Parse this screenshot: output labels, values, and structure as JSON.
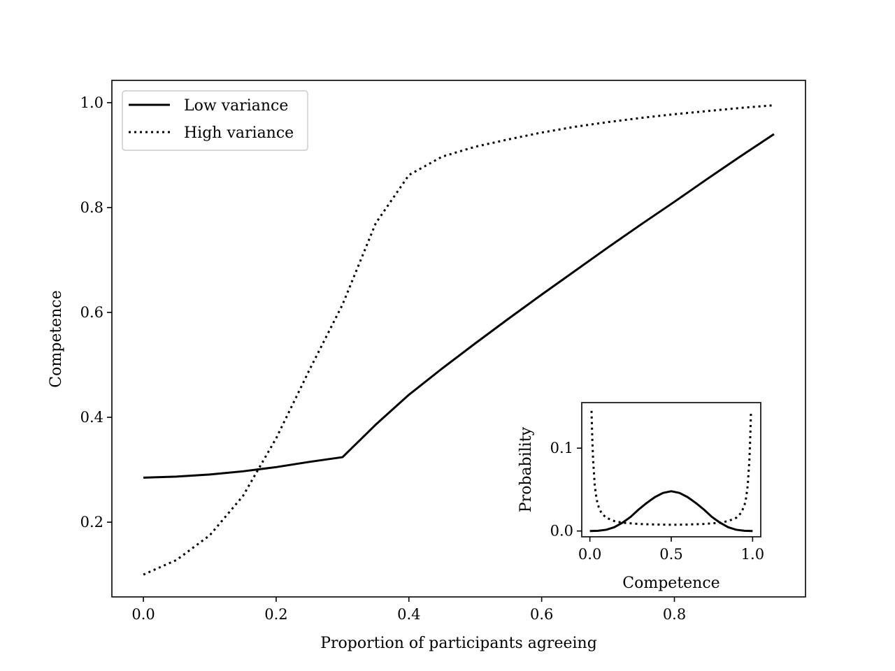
{
  "chart_data": [
    {
      "type": "line",
      "title": "",
      "xlabel": "Proportion of participants agreeing",
      "ylabel": "Competence",
      "xlim": [
        -0.0475,
        0.9975
      ],
      "ylim": [
        0.0575,
        1.0425
      ],
      "x_ticks": [
        "0.0",
        "0.2",
        "0.4",
        "0.6",
        "0.8"
      ],
      "x_tick_values": [
        0.0,
        0.2,
        0.4,
        0.6,
        0.8
      ],
      "y_ticks": [
        "0.2",
        "0.4",
        "0.6",
        "0.8",
        "1.0"
      ],
      "y_tick_values": [
        0.2,
        0.4,
        0.6,
        0.8,
        1.0
      ],
      "legend_position": "top-left",
      "grid": false,
      "series": [
        {
          "name": "Low variance",
          "style": "solid",
          "x": [
            0.0,
            0.05,
            0.1,
            0.15,
            0.2,
            0.25,
            0.3,
            0.35,
            0.4,
            0.45,
            0.5,
            0.55,
            0.6,
            0.65,
            0.7,
            0.75,
            0.8,
            0.85,
            0.9,
            0.95
          ],
          "y": [
            0.285,
            0.287,
            0.291,
            0.297,
            0.305,
            0.315,
            0.324,
            0.386,
            0.443,
            0.493,
            0.541,
            0.588,
            0.634,
            0.679,
            0.724,
            0.768,
            0.811,
            0.855,
            0.898,
            0.94
          ]
        },
        {
          "name": "High variance",
          "style": "dotted",
          "x": [
            0.0,
            0.05,
            0.1,
            0.15,
            0.2,
            0.25,
            0.3,
            0.35,
            0.4,
            0.45,
            0.5,
            0.55,
            0.6,
            0.65,
            0.7,
            0.75,
            0.8,
            0.85,
            0.9,
            0.95
          ],
          "y": [
            0.1,
            0.128,
            0.175,
            0.25,
            0.36,
            0.49,
            0.615,
            0.77,
            0.862,
            0.897,
            0.916,
            0.93,
            0.943,
            0.954,
            0.963,
            0.971,
            0.978,
            0.984,
            0.99,
            0.995
          ]
        }
      ]
    },
    {
      "type": "line",
      "title": "",
      "xlabel": "Competence",
      "ylabel": "Probability",
      "xlim": [
        -0.05,
        1.05
      ],
      "ylim": [
        -0.007,
        0.155
      ],
      "x_ticks": [
        "0.0",
        "0.5",
        "1.0"
      ],
      "x_tick_values": [
        0.0,
        0.5,
        1.0
      ],
      "y_ticks": [
        "0.0",
        "0.1"
      ],
      "y_tick_values": [
        0.0,
        0.1
      ],
      "grid": false,
      "series": [
        {
          "style": "solid",
          "x": [
            0.0,
            0.05,
            0.1,
            0.15,
            0.2,
            0.25,
            0.3,
            0.35,
            0.4,
            0.45,
            0.5,
            0.55,
            0.6,
            0.65,
            0.7,
            0.75,
            0.8,
            0.85,
            0.9,
            0.95,
            1.0
          ],
          "y": [
            0.0,
            0.0003,
            0.0015,
            0.0045,
            0.01,
            0.017,
            0.026,
            0.034,
            0.041,
            0.046,
            0.048,
            0.046,
            0.041,
            0.034,
            0.026,
            0.017,
            0.01,
            0.0045,
            0.0015,
            0.0003,
            0.0
          ]
        },
        {
          "style": "dotted",
          "x": [
            0.01,
            0.015,
            0.02,
            0.03,
            0.04,
            0.05,
            0.07,
            0.1,
            0.15,
            0.2,
            0.3,
            0.4,
            0.5,
            0.6,
            0.7,
            0.8,
            0.85,
            0.9,
            0.93,
            0.95,
            0.96,
            0.97,
            0.98,
            0.985,
            0.99
          ],
          "y": [
            0.145,
            0.11,
            0.085,
            0.055,
            0.04,
            0.031,
            0.022,
            0.016,
            0.012,
            0.01,
            0.0085,
            0.0078,
            0.0075,
            0.0078,
            0.0085,
            0.01,
            0.012,
            0.016,
            0.022,
            0.031,
            0.04,
            0.055,
            0.085,
            0.11,
            0.145
          ]
        }
      ]
    }
  ]
}
